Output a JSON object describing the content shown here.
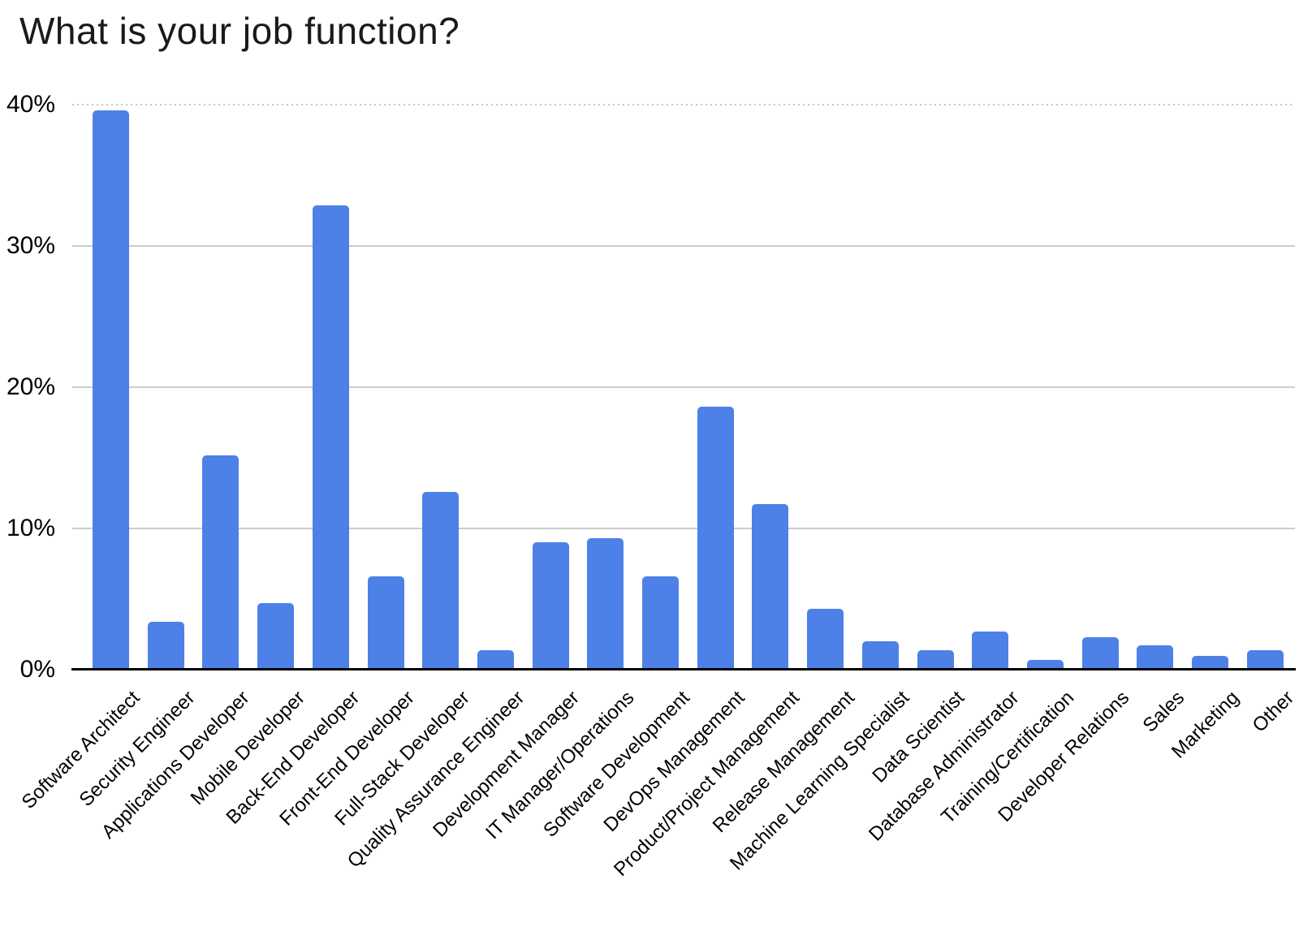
{
  "title": "What is your job function?",
  "accent_color": "#4d81e8",
  "chart_data": {
    "type": "bar",
    "title": "What is your job function?",
    "xlabel": "",
    "ylabel": "",
    "ylim": [
      0,
      40
    ],
    "grid": true,
    "legend": "none",
    "bar_color": "#4d81e8",
    "gridline_color": "#cccccc",
    "yticks": [
      {
        "value": 0,
        "label": "0%"
      },
      {
        "value": 10,
        "label": "10%"
      },
      {
        "value": 20,
        "label": "20%"
      },
      {
        "value": 30,
        "label": "30%"
      },
      {
        "value": 40,
        "label": "40%"
      }
    ],
    "categories": [
      "Software Architect",
      "Security Engineer",
      "Applications Developer",
      "Mobile Developer",
      "Back-End Developer",
      "Front-End Developer",
      "Full-Stack Developer",
      "Quality Assurance Engineer",
      "Development Manager",
      "IT Manager/Operations",
      "Software Development",
      "DevOps Management",
      "Product/Project Management",
      "Release Management",
      "Machine Learning Specialist",
      "Data Scientist",
      "Database Administrator",
      "Training/Certification",
      "Developer Relations",
      "Sales",
      "Marketing",
      "Other"
    ],
    "values": [
      39.6,
      3.4,
      15.2,
      4.7,
      32.9,
      6.6,
      12.6,
      1.4,
      9.0,
      9.3,
      6.6,
      18.6,
      11.7,
      4.3,
      2.0,
      1.4,
      2.7,
      0.7,
      2.3,
      1.7,
      1.0,
      1.4
    ]
  }
}
